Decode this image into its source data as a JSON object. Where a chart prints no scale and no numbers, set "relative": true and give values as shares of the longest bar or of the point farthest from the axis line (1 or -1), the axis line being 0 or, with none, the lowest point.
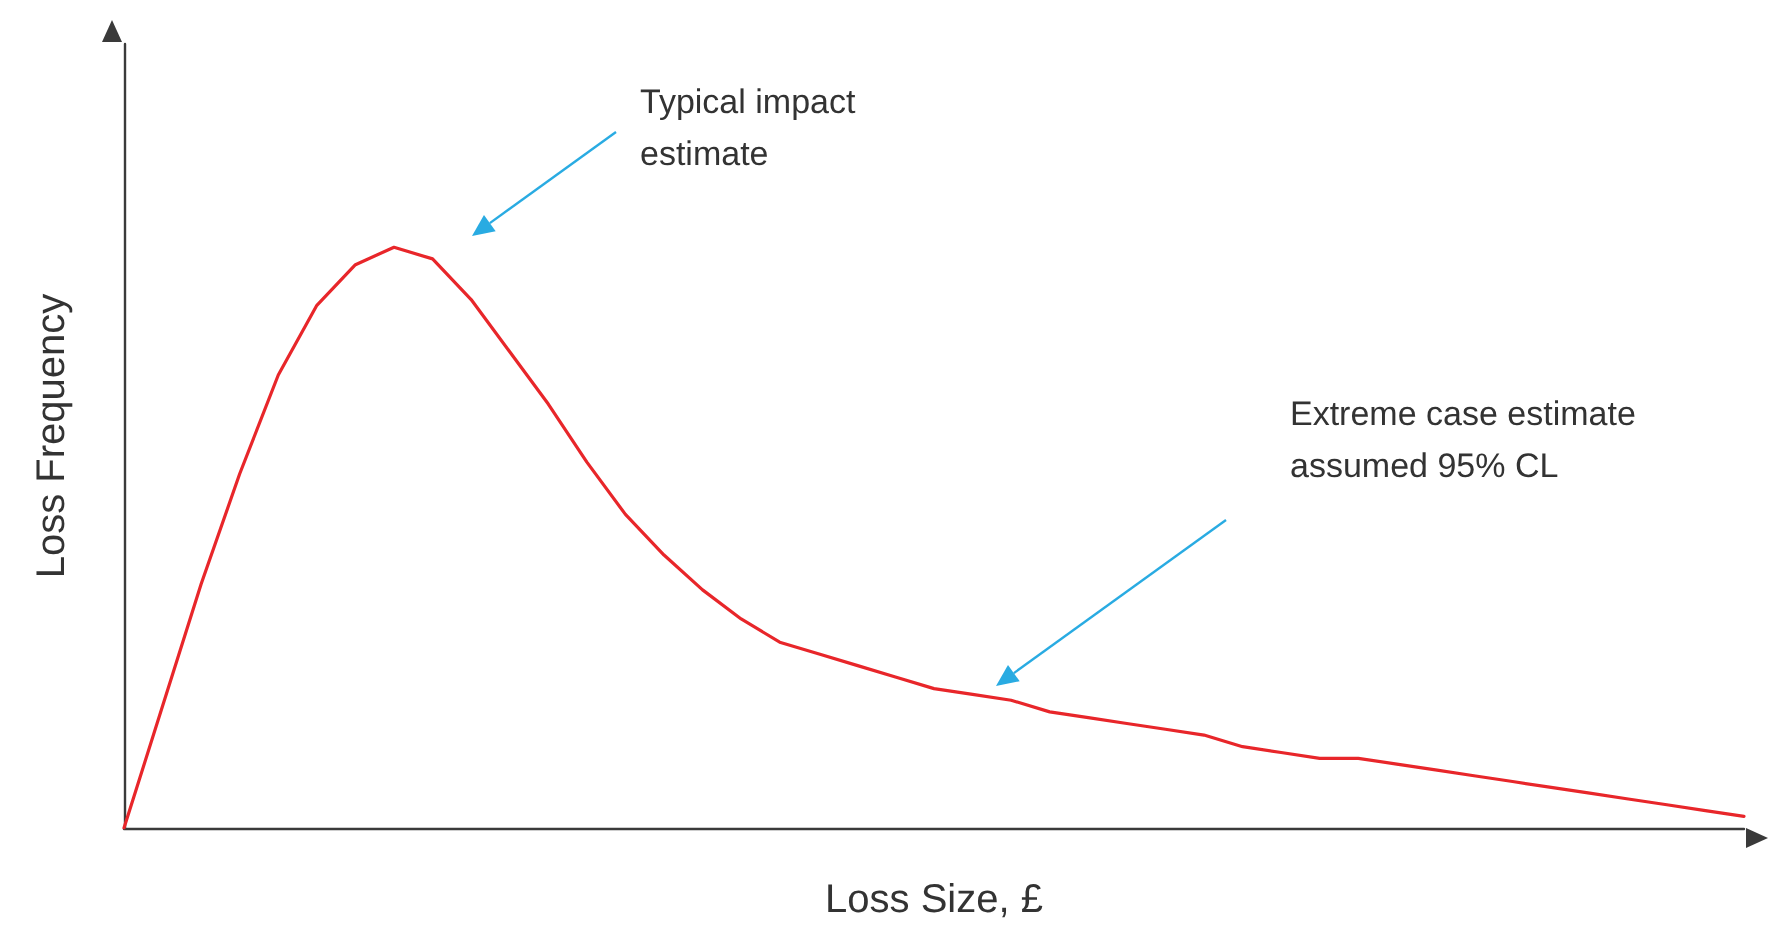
{
  "chart_data": {
    "type": "line",
    "relative": true,
    "xlabel": "Loss Size, £",
    "ylabel": "Loss Frequency",
    "categories": [
      null,
      null,
      null,
      null,
      null,
      null,
      null,
      null,
      null,
      null,
      null,
      null,
      null,
      null,
      null,
      null,
      null,
      null,
      null,
      null,
      null,
      null,
      null,
      null,
      null,
      null,
      null,
      null,
      null,
      null,
      null,
      null,
      null,
      null,
      null,
      null,
      null,
      null,
      null,
      null,
      null,
      null,
      null
    ],
    "series": [
      {
        "color": "#e8262a",
        "values": [
          0,
          0.21,
          0.42,
          0.61,
          0.78,
          0.9,
          0.97,
          1,
          0.98,
          0.91,
          0.82,
          0.73,
          0.63,
          0.54,
          0.47,
          0.41,
          0.36,
          0.32,
          0.3,
          0.28,
          0.26,
          0.24,
          0.23,
          0.22,
          0.2,
          0.19,
          0.18,
          0.17,
          0.16,
          0.14,
          0.13,
          0.12,
          0.12,
          0.11,
          0.1,
          0.09,
          0.08,
          0.07,
          0.06,
          0.05,
          0.04,
          0.03,
          0.02
        ]
      }
    ],
    "annotations": [
      "Typical impact estimate",
      "Extreme case estimate assumed 95% CL"
    ],
    "grid": false,
    "marker": "none",
    "line_style": "solid"
  }
}
